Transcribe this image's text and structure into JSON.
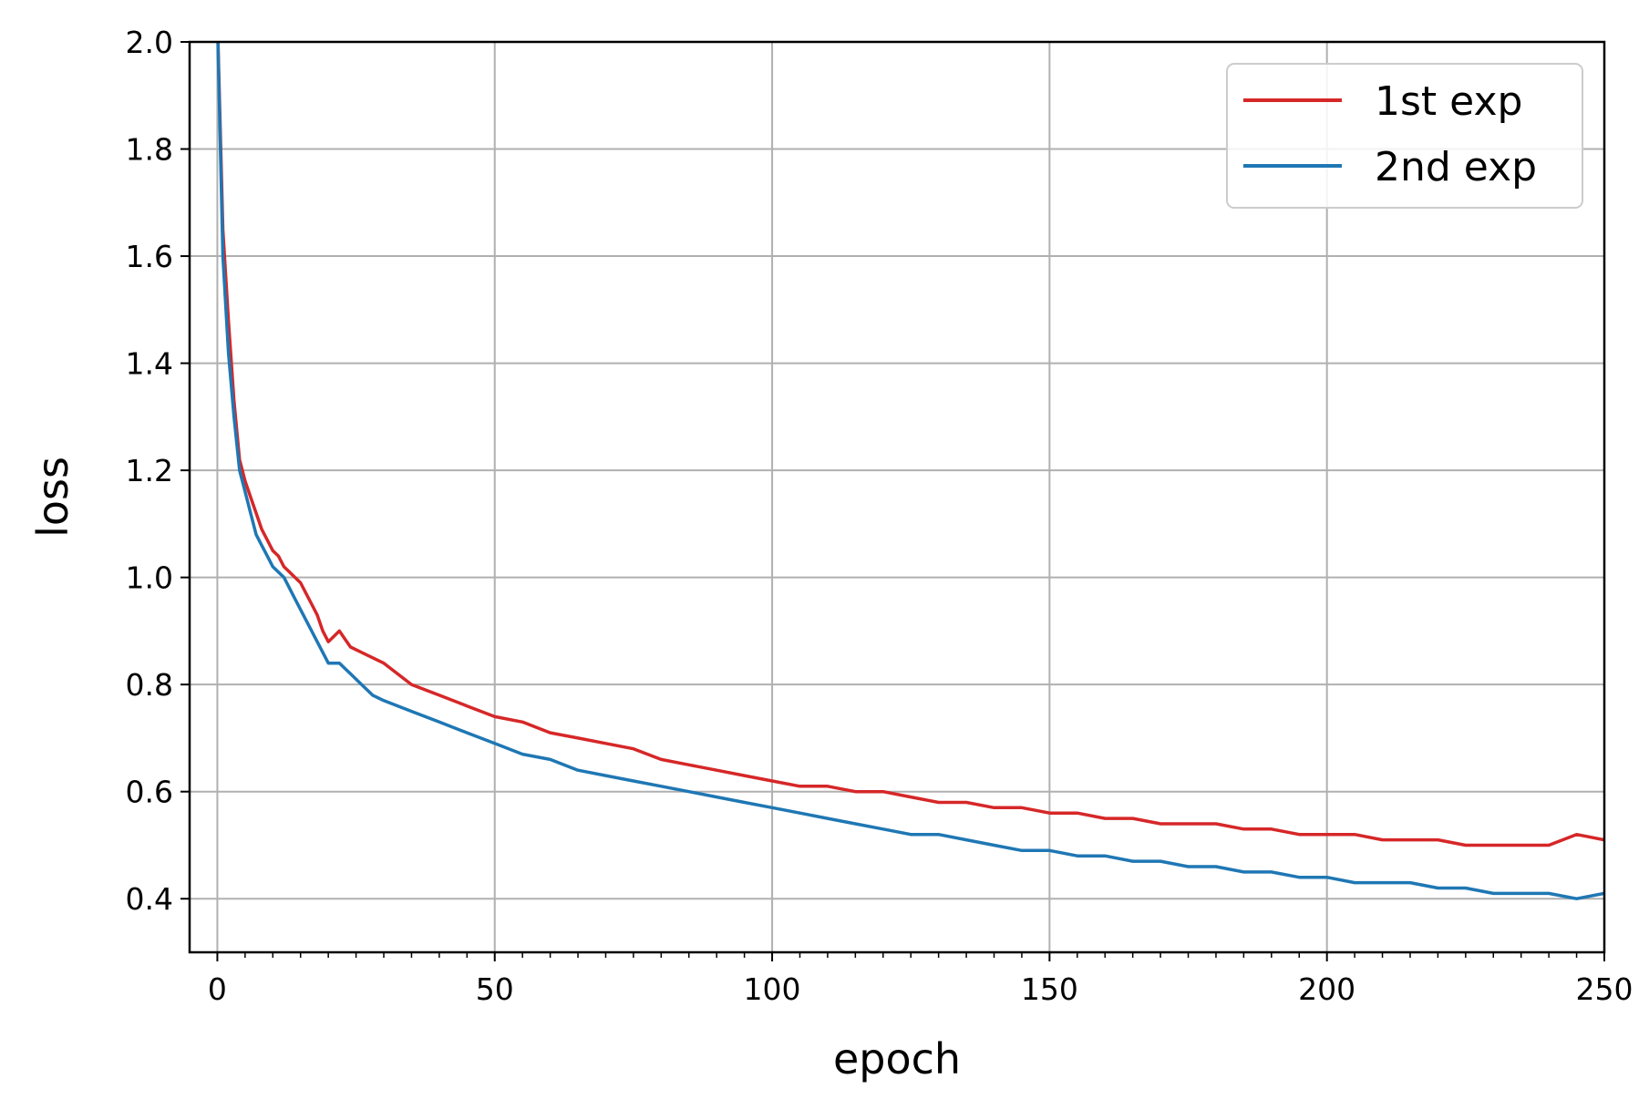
{
  "chart_data": {
    "type": "line",
    "title": "",
    "xlabel": "epoch",
    "ylabel": "loss",
    "xlim": [
      -5,
      250
    ],
    "ylim": [
      0.3,
      2.0
    ],
    "xticks": [
      "0",
      "50",
      "100",
      "150",
      "200",
      "250"
    ],
    "yticks": [
      "0.4",
      "0.6",
      "0.8",
      "1.0",
      "1.2",
      "1.4",
      "1.6",
      "1.8",
      "2.0"
    ],
    "grid": true,
    "legend_position": "top-right",
    "x": [
      0,
      1,
      2,
      3,
      4,
      5,
      6,
      7,
      8,
      9,
      10,
      11,
      12,
      13,
      14,
      15,
      16,
      17,
      18,
      19,
      20,
      22,
      24,
      26,
      28,
      30,
      35,
      40,
      45,
      50,
      55,
      60,
      65,
      70,
      75,
      80,
      85,
      90,
      95,
      100,
      105,
      110,
      115,
      120,
      125,
      130,
      135,
      140,
      145,
      150,
      155,
      160,
      165,
      170,
      175,
      180,
      185,
      190,
      195,
      200,
      205,
      210,
      215,
      220,
      225,
      230,
      235,
      240,
      245,
      250
    ],
    "series": [
      {
        "name": "1st exp",
        "color": "#d62728",
        "values": [
          2.05,
          1.65,
          1.48,
          1.33,
          1.22,
          1.18,
          1.15,
          1.12,
          1.09,
          1.07,
          1.05,
          1.04,
          1.02,
          1.01,
          1.0,
          0.99,
          0.97,
          0.95,
          0.93,
          0.9,
          0.88,
          0.9,
          0.87,
          0.86,
          0.85,
          0.84,
          0.8,
          0.78,
          0.76,
          0.74,
          0.73,
          0.71,
          0.7,
          0.69,
          0.68,
          0.66,
          0.65,
          0.64,
          0.63,
          0.62,
          0.61,
          0.61,
          0.6,
          0.6,
          0.59,
          0.58,
          0.58,
          0.57,
          0.57,
          0.56,
          0.56,
          0.55,
          0.55,
          0.54,
          0.54,
          0.54,
          0.53,
          0.53,
          0.52,
          0.52,
          0.52,
          0.51,
          0.51,
          0.51,
          0.5,
          0.5,
          0.5,
          0.5,
          0.52,
          0.51
        ]
      },
      {
        "name": "2nd exp",
        "color": "#1f77b4",
        "values": [
          2.05,
          1.6,
          1.42,
          1.3,
          1.2,
          1.16,
          1.12,
          1.08,
          1.06,
          1.04,
          1.02,
          1.01,
          1.0,
          0.98,
          0.96,
          0.94,
          0.92,
          0.9,
          0.88,
          0.86,
          0.84,
          0.84,
          0.82,
          0.8,
          0.78,
          0.77,
          0.75,
          0.73,
          0.71,
          0.69,
          0.67,
          0.66,
          0.64,
          0.63,
          0.62,
          0.61,
          0.6,
          0.59,
          0.58,
          0.57,
          0.56,
          0.55,
          0.54,
          0.53,
          0.52,
          0.52,
          0.51,
          0.5,
          0.49,
          0.49,
          0.48,
          0.48,
          0.47,
          0.47,
          0.46,
          0.46,
          0.45,
          0.45,
          0.44,
          0.44,
          0.43,
          0.43,
          0.43,
          0.42,
          0.42,
          0.41,
          0.41,
          0.41,
          0.4,
          0.41
        ]
      }
    ]
  }
}
